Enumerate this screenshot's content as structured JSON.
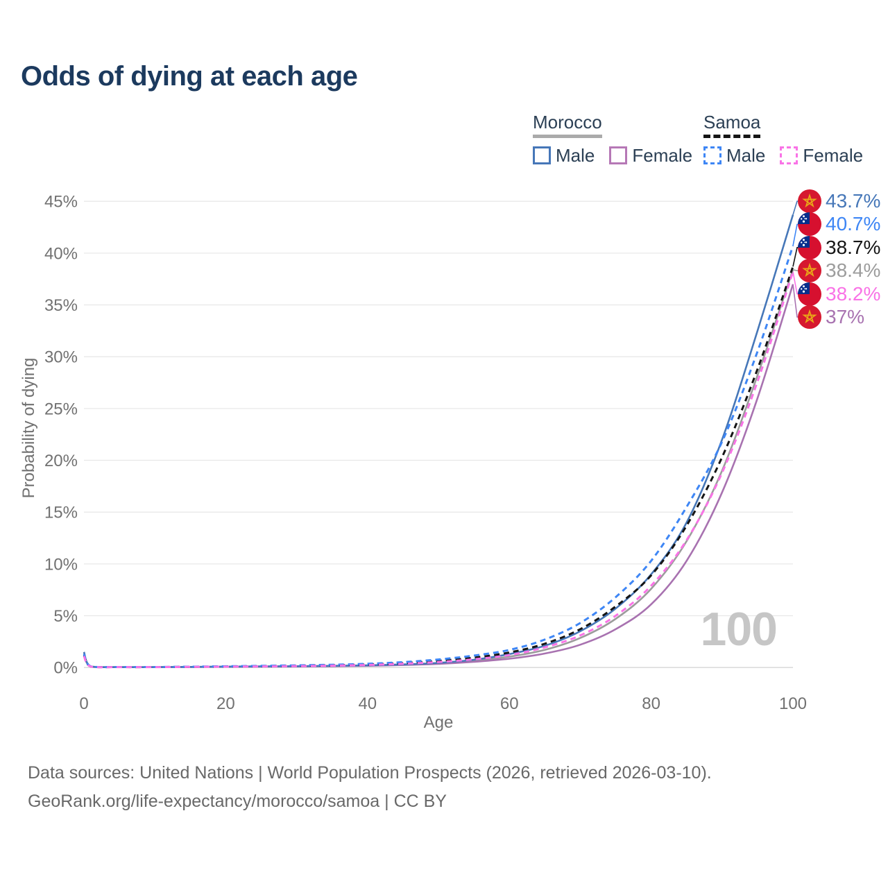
{
  "title": "Odds of dying at each age",
  "watermark": "100",
  "legend": {
    "groups": [
      {
        "id": "morocco",
        "label": "Morocco",
        "underline_style": "solid",
        "underline_color": "#aaaaaa",
        "items": [
          {
            "label": "Male",
            "color": "#4677b8",
            "dashed": false
          },
          {
            "label": "Female",
            "color": "#b678b6",
            "dashed": false
          }
        ]
      },
      {
        "id": "samoa",
        "label": "Samoa",
        "underline_style": "dashed",
        "underline_color": "#151515",
        "items": [
          {
            "label": "Male",
            "color": "#3e86f5",
            "dashed": true
          },
          {
            "label": "Female",
            "color": "#f973e6",
            "dashed": true
          }
        ]
      }
    ]
  },
  "chart_data": {
    "type": "line",
    "title": "Odds of dying at each age",
    "xlabel": "Age",
    "ylabel": "Probability of dying",
    "xlim": [
      0,
      100
    ],
    "ylim": [
      0,
      45
    ],
    "x_ticks": [
      0,
      20,
      40,
      60,
      80,
      100
    ],
    "y_ticks": [
      0,
      5,
      10,
      15,
      20,
      25,
      30,
      35,
      40,
      45
    ],
    "y_tick_suffix": "%",
    "grid": true,
    "legend_position": "top-right",
    "ages": [
      0,
      1,
      5,
      10,
      15,
      20,
      25,
      30,
      35,
      40,
      45,
      50,
      55,
      60,
      65,
      70,
      75,
      80,
      85,
      90,
      95,
      100
    ],
    "series": [
      {
        "name": "Morocco Male",
        "id": "morocco-male",
        "country": "Morocco",
        "sex": "Male",
        "color": "#4677b8",
        "dash": null,
        "width": 2.6,
        "flag": "morocco",
        "end_label": "43.7%",
        "values": [
          1.5,
          0.1,
          0.04,
          0.04,
          0.06,
          0.09,
          0.11,
          0.13,
          0.16,
          0.21,
          0.3,
          0.45,
          0.75,
          1.3,
          2.1,
          3.5,
          5.7,
          9.0,
          14.0,
          22.0,
          32.5,
          43.7
        ]
      },
      {
        "name": "Samoa Male",
        "id": "samoa-male",
        "country": "Samoa",
        "sex": "Male",
        "color": "#3e86f5",
        "dash": "8 6",
        "width": 3,
        "flag": "samoa",
        "end_label": "40.7%",
        "values": [
          1.3,
          0.1,
          0.05,
          0.05,
          0.08,
          0.12,
          0.16,
          0.21,
          0.27,
          0.36,
          0.52,
          0.78,
          1.15,
          1.7,
          2.7,
          4.3,
          6.8,
          10.3,
          15.5,
          21.8,
          30.5,
          40.7
        ]
      },
      {
        "name": "Samoa Both sexes",
        "id": "samoa-both",
        "country": "Samoa",
        "sex": "Both",
        "color": "#151515",
        "dash": "8 6",
        "width": 3,
        "flag": "samoa",
        "end_label": "38.7%",
        "values": [
          1.2,
          0.09,
          0.045,
          0.045,
          0.07,
          0.1,
          0.13,
          0.17,
          0.22,
          0.3,
          0.43,
          0.64,
          0.95,
          1.45,
          2.3,
          3.7,
          5.9,
          8.9,
          13.7,
          20.3,
          28.8,
          38.7
        ]
      },
      {
        "name": "Morocco Both sexes",
        "id": "morocco-both",
        "country": "Morocco",
        "sex": "Both",
        "color": "#9c9c9c",
        "dash": null,
        "width": 2.6,
        "flag": "morocco",
        "end_label": "38.4%",
        "values": [
          1.4,
          0.09,
          0.04,
          0.04,
          0.055,
          0.08,
          0.1,
          0.12,
          0.15,
          0.19,
          0.27,
          0.4,
          0.65,
          1.05,
          1.7,
          2.85,
          4.7,
          7.6,
          12.2,
          19.0,
          28.2,
          38.4
        ]
      },
      {
        "name": "Samoa Female",
        "id": "samoa-female",
        "country": "Samoa",
        "sex": "Female",
        "color": "#f973e6",
        "dash": "8 6",
        "width": 3,
        "flag": "samoa",
        "end_label": "38.2%",
        "values": [
          1.1,
          0.08,
          0.04,
          0.04,
          0.06,
          0.08,
          0.11,
          0.14,
          0.18,
          0.25,
          0.36,
          0.53,
          0.8,
          1.2,
          1.95,
          3.1,
          5.0,
          7.9,
          12.3,
          18.8,
          27.6,
          38.2
        ]
      },
      {
        "name": "Morocco Female",
        "id": "morocco-female",
        "country": "Morocco",
        "sex": "Female",
        "color": "#a872b0",
        "dash": null,
        "width": 2.6,
        "flag": "morocco",
        "end_label": "37%",
        "values": [
          1.3,
          0.08,
          0.035,
          0.035,
          0.05,
          0.07,
          0.085,
          0.1,
          0.13,
          0.17,
          0.24,
          0.35,
          0.55,
          0.85,
          1.35,
          2.2,
          3.7,
          6.1,
          10.3,
          16.9,
          26.0,
          37.0
        ]
      }
    ],
    "flag_colors": {
      "morocco_red": "#d6182f",
      "morocco_star": "#e9a818",
      "samoa_red": "#d6102f",
      "samoa_blue": "#072f8c"
    }
  },
  "footer": {
    "line1": "Data sources: United Nations | World Population Prospects (2026, retrieved 2026-03-10).",
    "line2": "GeoRank.org/life-expectancy/morocco/samoa | CC BY"
  }
}
